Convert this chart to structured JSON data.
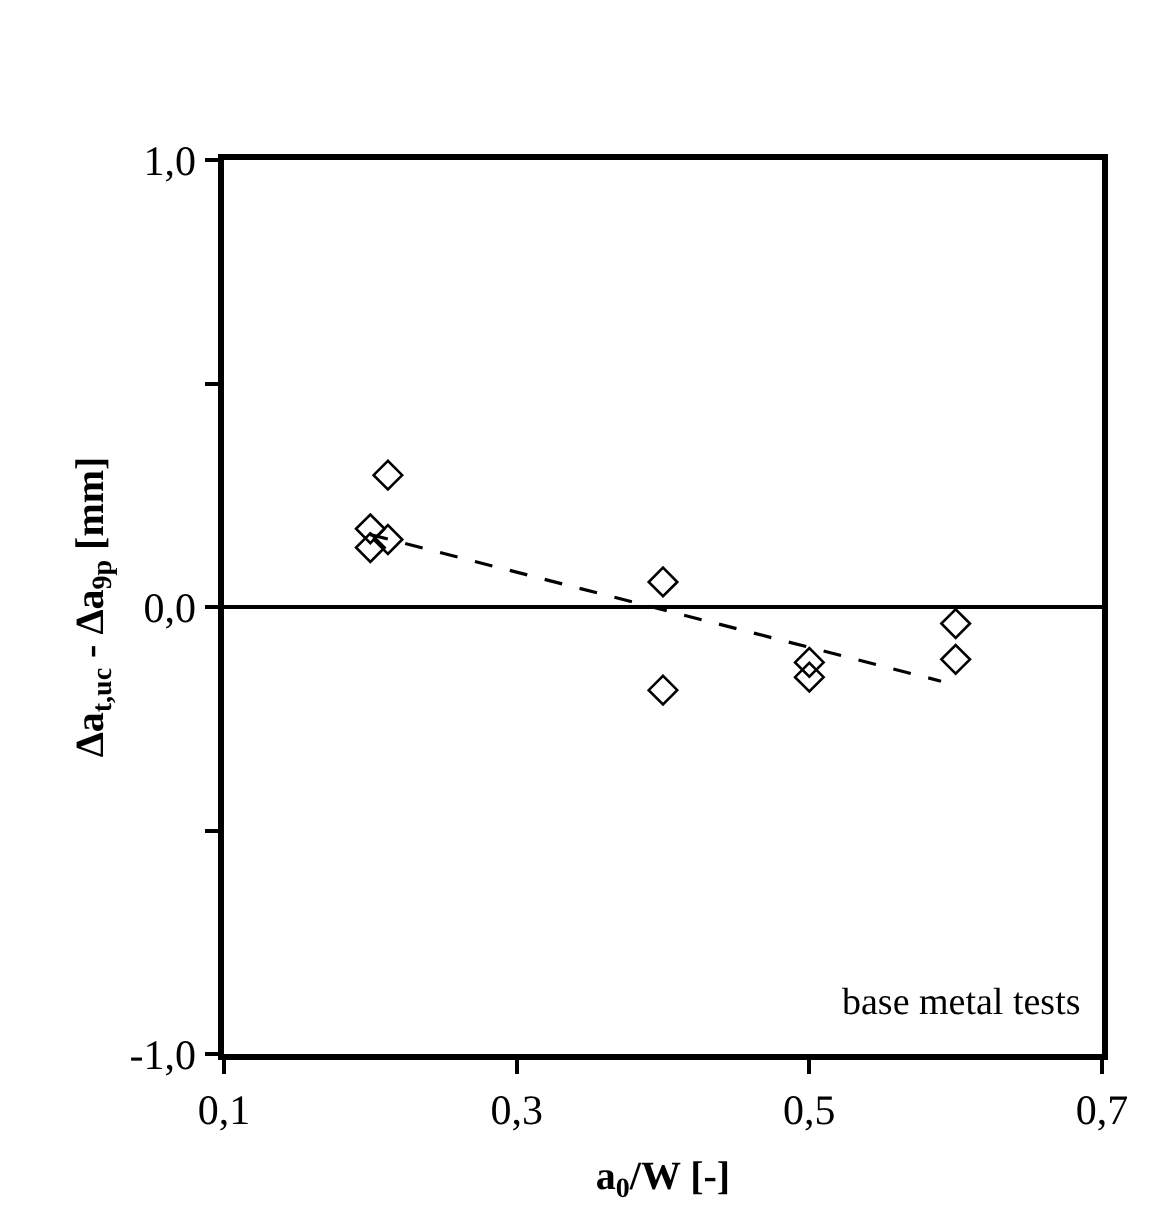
{
  "chart_data": {
    "type": "scatter",
    "xlabel": "a$_{0}$/W [-]",
    "ylabel": "Δa$_{t,uc}$ - Δa$_{9p}$ [mm]",
    "annotations": [
      "base metal tests"
    ],
    "series": [
      {
        "color": "#000000",
        "x": [
          0.212,
          0.2,
          0.212,
          0.2,
          0.4,
          0.4,
          0.5,
          0.5,
          0.6,
          0.6
        ],
        "values": [
          0.295,
          0.175,
          0.151,
          0.133,
          0.056,
          -0.186,
          -0.124,
          -0.157,
          -0.037,
          -0.117
        ]
      },
      {
        "type": "line",
        "color": "#000000",
        "line_style": "dashed",
        "marker": "none",
        "x": [
          0.2,
          0.59
        ],
        "values": [
          0.162,
          -0.166
        ]
      }
    ],
    "ref_lines": [
      {
        "axis": "y",
        "value": 0,
        "color": "#000000",
        "line_style": "solid"
      }
    ],
    "xlim": [
      0.1,
      0.7
    ],
    "xticks": [
      {
        "value": 0.1,
        "label": "0,1"
      },
      {
        "value": 0.3,
        "label": "0,3"
      },
      {
        "value": 0.5,
        "label": "0,5"
      },
      {
        "value": 0.7,
        "label": "0,7"
      }
    ],
    "ylim": [
      -1.0,
      1.0
    ],
    "yticks": [
      {
        "value": -1.0,
        "label": "-1,0"
      },
      {
        "value": -0.5,
        "label": null
      },
      {
        "value": 0.0,
        "label": "0,0"
      },
      {
        "value": 0.5,
        "label": null
      },
      {
        "value": 1.0,
        "label": "1,0"
      }
    ],
    "marker": "diamond"
  }
}
